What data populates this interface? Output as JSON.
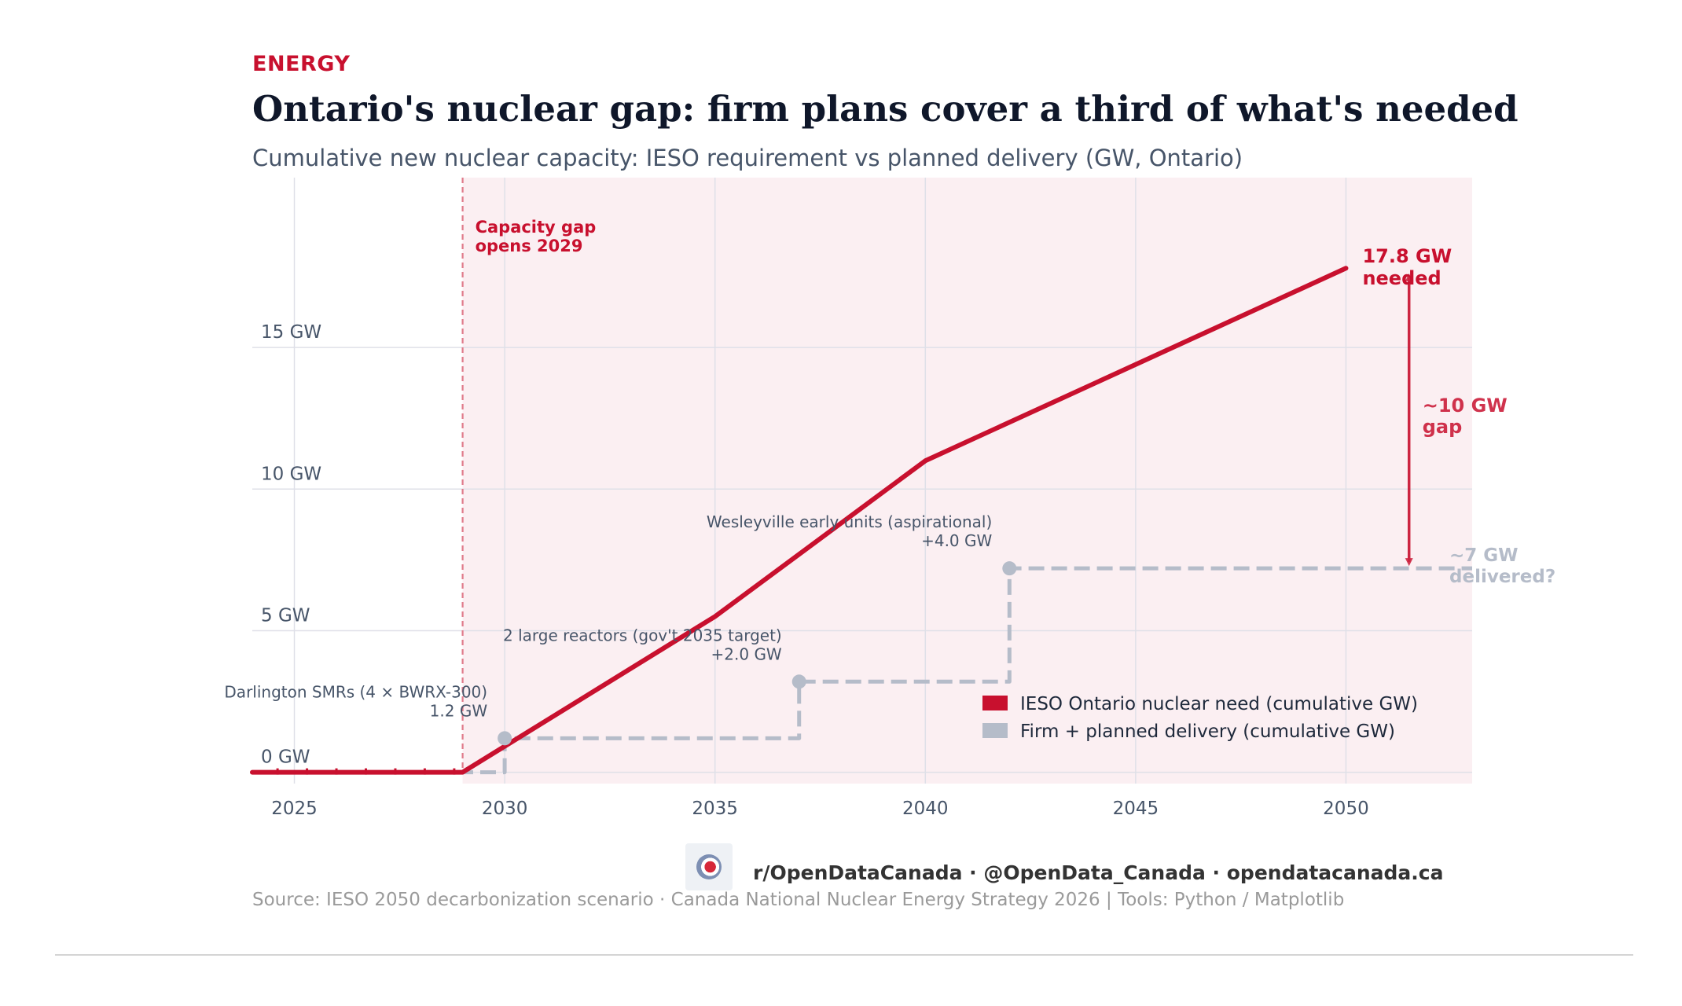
{
  "header": {
    "kicker": "ENERGY",
    "title": "Ontario's nuclear gap: firm plans cover a third of what's needed",
    "subtitle": "Cumulative new nuclear capacity: IESO requirement vs planned delivery (GW, Ontario)"
  },
  "chart_data": {
    "type": "line",
    "xlim": [
      2024,
      2053
    ],
    "ylim": [
      -0.4,
      21
    ],
    "x_ticks": [
      2025,
      2030,
      2035,
      2040,
      2045,
      2050
    ],
    "x_tick_labels": [
      "2025",
      "2030",
      "2035",
      "2040",
      "2045",
      "2050"
    ],
    "y_ticks": [
      0,
      5,
      10,
      15
    ],
    "y_tick_labels": [
      "0 GW",
      "5 GW",
      "10 GW",
      "15 GW"
    ],
    "grid": true,
    "legend_position": "lower-right",
    "shaded_region": {
      "x_start": 2029,
      "x_end": 2053,
      "color": "#fbeff2"
    },
    "series": [
      {
        "name": "IESO Ontario nuclear need (cumulative GW)",
        "color": "#c8102e",
        "style": "solid",
        "x": [
          2024,
          2029,
          2035,
          2040,
          2050
        ],
        "y": [
          0,
          0,
          5.5,
          11.0,
          17.8
        ]
      },
      {
        "name": "Firm + planned delivery (cumulative GW)",
        "color": "#b5bcc9",
        "style": "dashed-step",
        "x": [
          2024,
          2030,
          2030,
          2037,
          2037,
          2042,
          2042,
          2053
        ],
        "y": [
          0,
          0,
          1.2,
          1.2,
          3.2,
          3.2,
          7.2,
          7.2
        ]
      }
    ],
    "markers": [
      {
        "x": 2030,
        "y": 1.2
      },
      {
        "x": 2037,
        "y": 3.2
      },
      {
        "x": 2042,
        "y": 7.2
      }
    ],
    "annotations": {
      "gap_line_x": 2029,
      "gap_line_label": [
        "Capacity gap",
        "opens 2029"
      ],
      "need_end_label": [
        "17.8 GW",
        "needed"
      ],
      "gap_label": [
        "~10 GW",
        "gap"
      ],
      "delivered_label": [
        "~7 GW",
        "delivered?"
      ],
      "arrow": {
        "x": 2051.5,
        "from_y": 7.2,
        "to_y": 17.7
      },
      "steps": [
        {
          "x": 2030,
          "y": 1.2,
          "lines": [
            "Darlington SMRs (4 × BWRX-300)",
            "1.2 GW"
          ]
        },
        {
          "x": 2037,
          "y": 3.2,
          "lines": [
            "2 large reactors (gov't 2035 target)",
            "+2.0 GW"
          ]
        },
        {
          "x": 2042,
          "y": 7.2,
          "lines": [
            "Wesleyville early units (aspirational)",
            "+4.0 GW"
          ]
        }
      ]
    }
  },
  "footer": {
    "credit": "r/OpenDataCanada  ·  @OpenData_Canada  ·  opendatacanada.ca",
    "source": "Source: IESO 2050 decarbonization scenario · Canada National Nuclear Energy Strategy 2026  |  Tools: Python / Matplotlib"
  }
}
